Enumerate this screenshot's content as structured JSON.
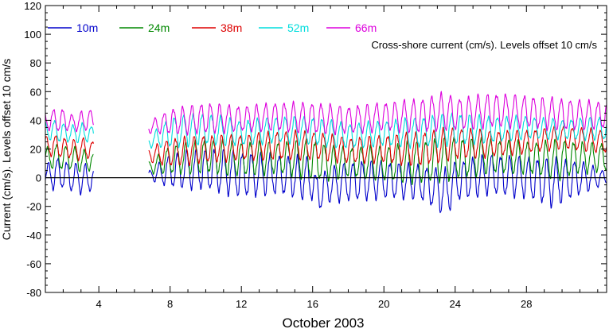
{
  "chart_data": {
    "type": "line",
    "title": "",
    "annotation": "Cross-shore current (cm/s). Levels offset 10 cm/s",
    "xlabel": "October 2003",
    "ylabel": "Current (cm/s). Levels offset 10 cm/s",
    "xlim": [
      1,
      32.5
    ],
    "ylim": [
      -80,
      120
    ],
    "xticks": [
      4,
      8,
      12,
      16,
      20,
      24,
      28
    ],
    "xtick_labels": [
      "4",
      "8",
      "12",
      "16",
      "20",
      "24",
      "28"
    ],
    "yticks": [
      -80,
      -60,
      -40,
      -20,
      0,
      20,
      40,
      60,
      80,
      100,
      120
    ],
    "ytick_labels": [
      "-80",
      "-60",
      "-40",
      "-20",
      "0",
      "20",
      "40",
      "60",
      "80",
      "100",
      "120"
    ],
    "zero_line": 0,
    "legend_position": "top-left",
    "data_gap": [
      3.7,
      6.8
    ],
    "series": [
      {
        "name": "10m",
        "color": "#0000cc",
        "offset": 0,
        "x": [
          1.0,
          1.5,
          2.0,
          2.5,
          3.0,
          3.5,
          3.7,
          6.8,
          8,
          10,
          12,
          14,
          16,
          16.2,
          17,
          18,
          20,
          22,
          23.5,
          24,
          26,
          28,
          29.5,
          31,
          32.5
        ],
        "y_max": [
          10,
          18,
          15,
          12,
          14,
          10,
          8,
          5,
          20,
          25,
          22,
          20,
          18,
          5,
          10,
          15,
          15,
          12,
          10,
          15,
          20,
          18,
          18,
          15,
          5
        ],
        "y_min": [
          -8,
          -12,
          -10,
          -12,
          -14,
          -12,
          -8,
          -2,
          -10,
          -12,
          -18,
          -15,
          -20,
          -28,
          -20,
          -20,
          -18,
          -18,
          -31,
          -20,
          -15,
          -18,
          -25,
          -15,
          -5
        ]
      },
      {
        "name": "24m",
        "color": "#008800",
        "offset": 10,
        "x": [
          1.0,
          1.5,
          2.0,
          2.5,
          3.0,
          3.5,
          3.7,
          6.8,
          8,
          10,
          12,
          14,
          16,
          17,
          18,
          20,
          22,
          24,
          26,
          28,
          30,
          31,
          32.5
        ],
        "y_max": [
          22,
          26,
          25,
          24,
          22,
          20,
          18,
          12,
          25,
          30,
          28,
          28,
          30,
          25,
          24,
          25,
          30,
          32,
          30,
          28,
          30,
          28,
          26
        ],
        "y_min": [
          5,
          4,
          3,
          4,
          2,
          3,
          5,
          2,
          0,
          0,
          -2,
          0,
          -5,
          -5,
          -2,
          -5,
          -8,
          -5,
          0,
          0,
          -5,
          0,
          2
        ]
      },
      {
        "name": "38m",
        "color": "#dd0000",
        "offset": 20,
        "x": [
          1.0,
          1.5,
          2.0,
          2.5,
          3.0,
          3.5,
          3.7,
          6.8,
          8,
          10,
          12,
          14,
          16,
          18,
          20,
          22,
          24,
          26,
          28,
          30,
          32.5
        ],
        "y_max": [
          30,
          32,
          30,
          28,
          30,
          28,
          26,
          22,
          30,
          32,
          32,
          35,
          35,
          30,
          32,
          35,
          38,
          35,
          35,
          38,
          35
        ],
        "y_min": [
          15,
          12,
          12,
          12,
          10,
          12,
          14,
          10,
          5,
          8,
          10,
          10,
          10,
          8,
          8,
          5,
          10,
          12,
          15,
          18,
          15
        ]
      },
      {
        "name": "52m",
        "color": "#00dddd",
        "offset": 30,
        "x": [
          1.0,
          1.5,
          2.0,
          2.5,
          3.0,
          3.5,
          3.7,
          6.8,
          8,
          10,
          12,
          14,
          16,
          18,
          20,
          22,
          24,
          26,
          28,
          30,
          32.5
        ],
        "y_max": [
          40,
          42,
          40,
          38,
          40,
          38,
          36,
          30,
          45,
          48,
          42,
          45,
          45,
          40,
          42,
          45,
          48,
          45,
          45,
          42,
          45
        ],
        "y_min": [
          25,
          24,
          22,
          24,
          22,
          24,
          25,
          20,
          18,
          20,
          20,
          22,
          20,
          18,
          20,
          18,
          20,
          22,
          25,
          25,
          24
        ]
      },
      {
        "name": "66m",
        "color": "#dd00dd",
        "offset": 40,
        "x": [
          1.0,
          1.5,
          2.0,
          2.5,
          3.0,
          3.5,
          3.7,
          6.8,
          8,
          10,
          12,
          14,
          16,
          18,
          20,
          22,
          23.5,
          24,
          26,
          28,
          30,
          32.5
        ],
        "y_max": [
          48,
          50,
          50,
          45,
          48,
          50,
          45,
          40,
          50,
          55,
          52,
          55,
          55,
          52,
          55,
          58,
          63,
          58,
          62,
          60,
          58,
          55
        ],
        "y_min": [
          32,
          30,
          30,
          32,
          30,
          32,
          34,
          30,
          28,
          28,
          30,
          30,
          28,
          28,
          30,
          28,
          30,
          30,
          32,
          32,
          30,
          32
        ]
      }
    ]
  }
}
